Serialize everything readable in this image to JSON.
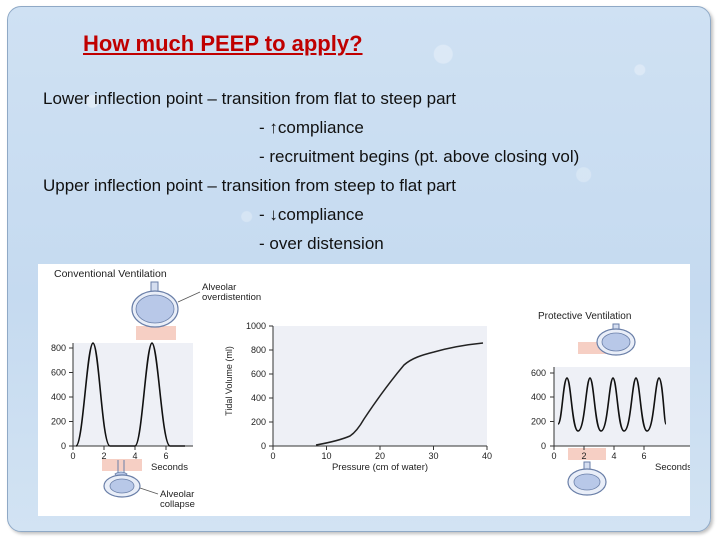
{
  "slide": {
    "title": "How much PEEP to apply?",
    "lines": [
      "Lower inflection point – transition from flat to steep part",
      "- ↑compliance",
      "- recruitment begins (pt. above closing vol)",
      "Upper inflection point – transition from steep to flat part",
      "- ↓compliance",
      "- over distension"
    ]
  },
  "figure": {
    "conventional_label": "Conventional Ventilation",
    "protective_label": "Protective Ventilation",
    "overdistention_label": [
      "Alveolar",
      "overdistention"
    ],
    "collapse_label": [
      "Alveolar",
      "collapse"
    ],
    "left_chart": {
      "yticks": [
        "800",
        "600",
        "400",
        "200",
        "0"
      ],
      "xticks": [
        "0",
        "2",
        "4",
        "6"
      ],
      "xlabel": "Seconds"
    },
    "center_chart": {
      "ylabel": "Tidal Volume (ml)",
      "xlabel": "Pressure (cm of water)",
      "yticks": [
        "1000",
        "800",
        "600",
        "400",
        "200",
        "0"
      ],
      "xticks": [
        "0",
        "10",
        "20",
        "30",
        "40"
      ]
    },
    "right_chart": {
      "yticks": [
        "600",
        "400",
        "200",
        "0"
      ],
      "xticks": [
        "0",
        "2",
        "4",
        "6"
      ],
      "xlabel": "Seconds"
    }
  },
  "colors": {
    "title": "#c00000",
    "background": "#c9dcf1",
    "alveolus_fill": "#b8c8e8",
    "alveolus_stroke": "#6a7fa8",
    "pink_bar": "#f6cfc4"
  }
}
